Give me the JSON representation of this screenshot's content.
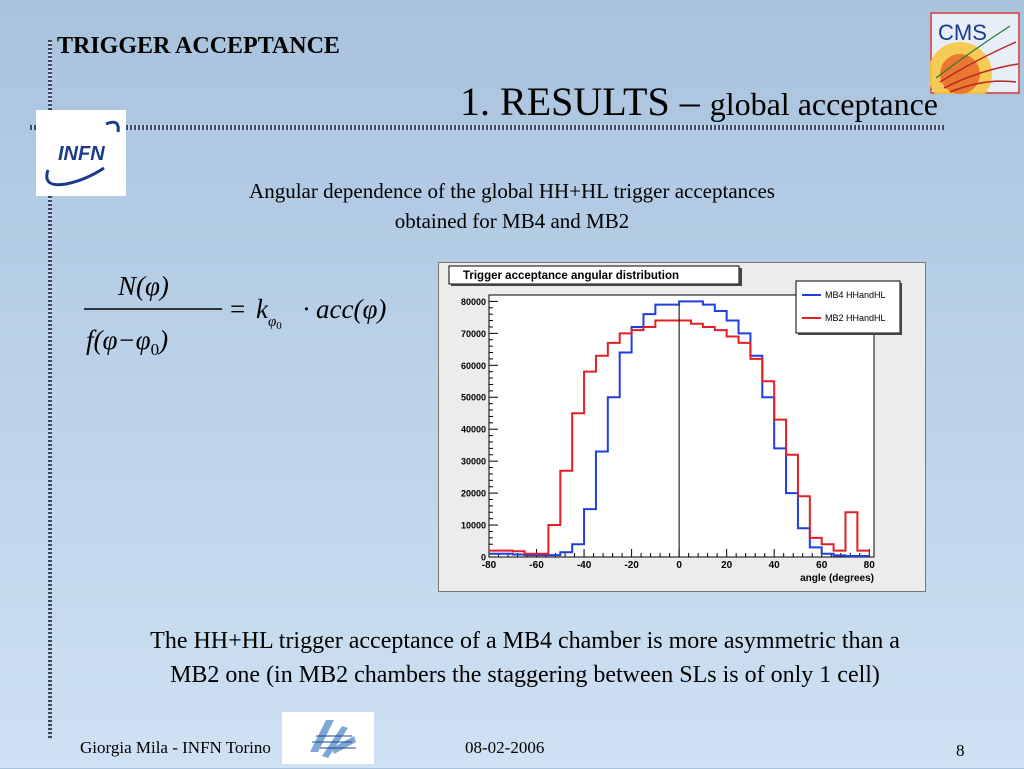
{
  "header": {
    "section": "TRIGGER ACCEPTANCE",
    "title_main": "1. RESULTS –",
    "title_sub": "global acceptance",
    "cms_logo_text": "CMS",
    "infn_logo_text": "INFN"
  },
  "subtitle": {
    "line1": "Angular dependence of the global HH+HL trigger acceptances",
    "line2": "obtained for MB4 and MB2"
  },
  "formula": {
    "numerator": "N(φ)",
    "denominator_f": "f",
    "denominator_args": "(φ−φ",
    "denominator_sub": "0",
    "denominator_close": ")",
    "equals": "=",
    "k": "k",
    "k_sub": "φ",
    "k_sub_sub": "0",
    "dot": "·",
    "rhs": "acc(φ)"
  },
  "conclusion": {
    "line1": "The HH+HL trigger acceptance of a MB4 chamber is more asymmetric than a",
    "line2": "MB2 one (in MB2 chambers the staggering between SLs is of only 1 cell)"
  },
  "footer": {
    "author": "Giorgia Mila - INFN Torino",
    "date": "08-02-2006",
    "page": "8"
  },
  "chart_data": {
    "type": "line",
    "title": "Trigger acceptance angular distribution",
    "xlabel": "angle (degrees)",
    "ylabel": "",
    "xlim": [
      -80,
      82
    ],
    "ylim": [
      0,
      82000
    ],
    "xticks": [
      -80,
      -60,
      -40,
      -20,
      0,
      20,
      40,
      60,
      80
    ],
    "yticks": [
      0,
      10000,
      20000,
      30000,
      40000,
      50000,
      60000,
      70000,
      80000
    ],
    "ytick_labels": [
      "0",
      "10000",
      "20000",
      "30000",
      "40000",
      "50000",
      "60000",
      "70000",
      "80000"
    ],
    "grid": false,
    "legend_position": "top-right",
    "bin_edges": [
      -80,
      -70,
      -65,
      -60,
      -55,
      -50,
      -45,
      -40,
      -35,
      -30,
      -25,
      -20,
      -15,
      -10,
      -5,
      0,
      5,
      10,
      15,
      20,
      25,
      30,
      35,
      40,
      45,
      50,
      55,
      60,
      65,
      70,
      75,
      80
    ],
    "series": [
      {
        "name": "MB4 HHandHL",
        "color": "#1f3fe0",
        "values": [
          1000,
          800,
          600,
          600,
          600,
          1500,
          4000,
          15000,
          33000,
          50000,
          64000,
          72000,
          76000,
          79000,
          79000,
          80000,
          80000,
          79000,
          77000,
          74000,
          70000,
          63000,
          50000,
          34000,
          20000,
          9000,
          3000,
          1000,
          500,
          300,
          300
        ]
      },
      {
        "name": "MB2 HHandHL",
        "color": "#e81e25",
        "values": [
          2000,
          1800,
          1000,
          1000,
          10000,
          27000,
          45000,
          58000,
          63000,
          67000,
          70000,
          71000,
          72000,
          74000,
          74000,
          74000,
          73000,
          72000,
          71000,
          69000,
          67000,
          62000,
          55000,
          43000,
          32000,
          19000,
          6000,
          4000,
          2000,
          14000,
          2000
        ]
      }
    ],
    "vertical_marker_x": 0
  }
}
